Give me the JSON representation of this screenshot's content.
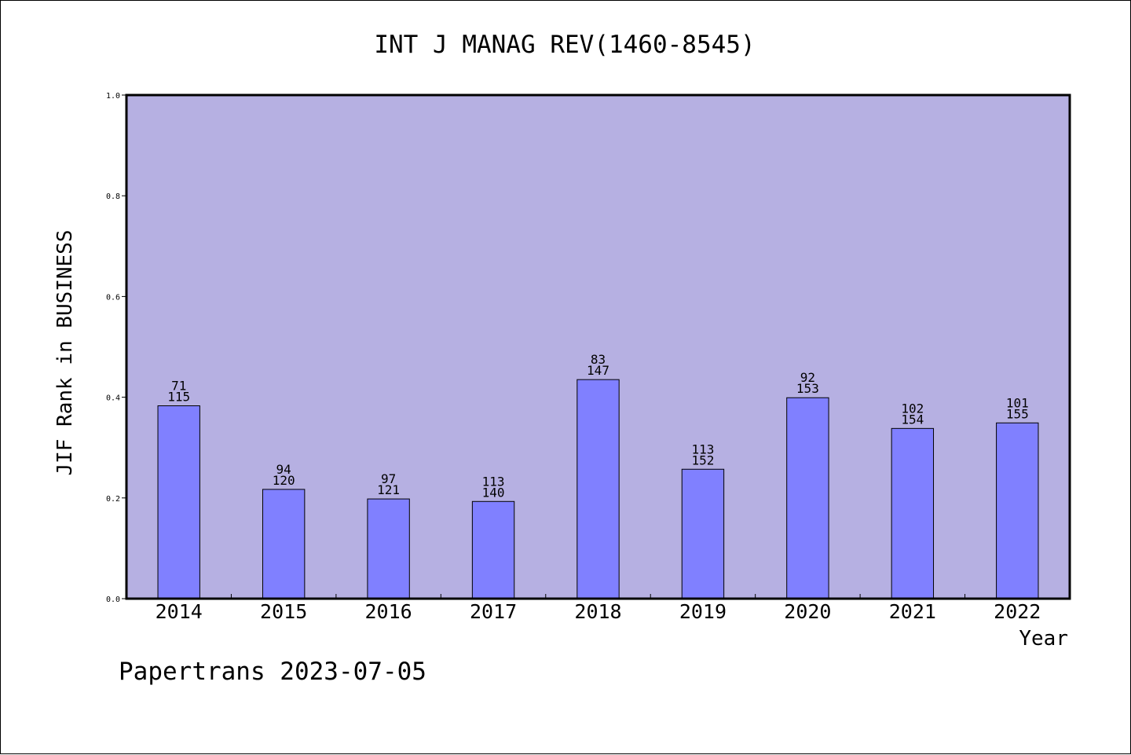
{
  "chart_data": {
    "type": "bar",
    "title": "INT J MANAG REV(1460-8545)",
    "xlabel": "Year",
    "ylabel": "JIF Rank in BUSINESS",
    "ylim": [
      0.0,
      1.0
    ],
    "yticks": [
      "0.0",
      "0.2",
      "0.4",
      "0.6",
      "0.8",
      "1.0"
    ],
    "categories": [
      "2014",
      "2015",
      "2016",
      "2017",
      "2018",
      "2019",
      "2020",
      "2021",
      "2022"
    ],
    "values": [
      0.383,
      0.217,
      0.198,
      0.193,
      0.435,
      0.257,
      0.399,
      0.338,
      0.349
    ],
    "rank": [
      "71",
      "94",
      "97",
      "113",
      "83",
      "113",
      "92",
      "102",
      "101"
    ],
    "total": [
      "115",
      "120",
      "121",
      "140",
      "147",
      "152",
      "153",
      "154",
      "155"
    ],
    "grid": false,
    "legend": "none",
    "colors": {
      "plot_bg": "#b6b0e2",
      "bar": "#8080ff",
      "axis": "#000000"
    }
  },
  "footer": "Papertrans 2023-07-05"
}
